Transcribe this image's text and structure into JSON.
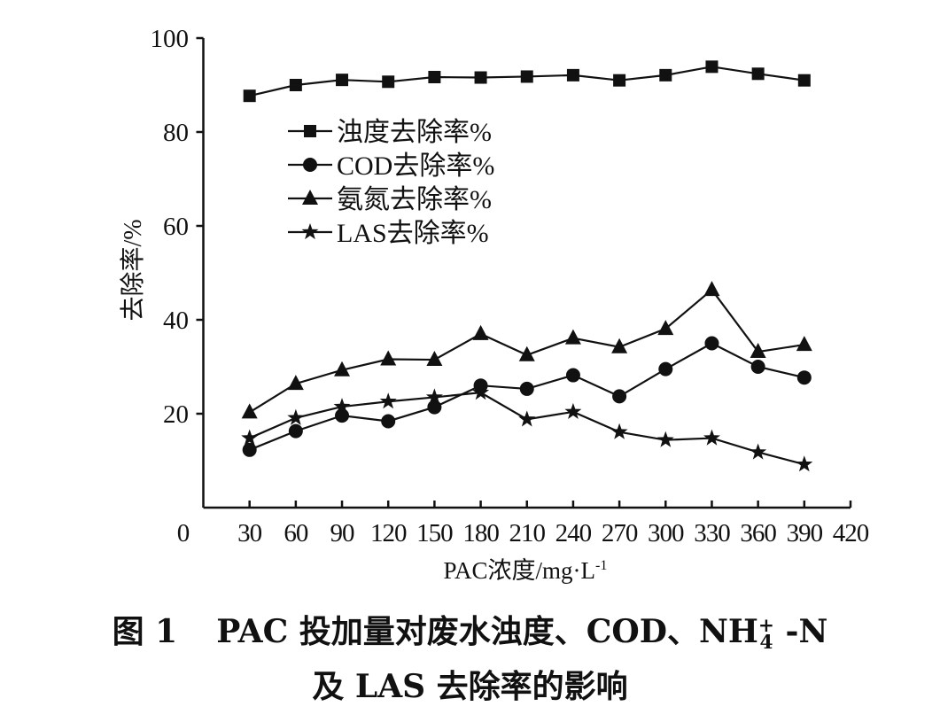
{
  "chart_data": {
    "type": "line",
    "title": "",
    "xlabel": "PAC浓度/mg·L",
    "xlabel_sup": "-1",
    "ylabel": "去除率/%",
    "xlim": [
      0,
      420
    ],
    "ylim": [
      0,
      100
    ],
    "xticks": [
      0,
      30,
      60,
      90,
      120,
      150,
      180,
      210,
      240,
      270,
      300,
      330,
      360,
      390,
      420
    ],
    "yticks": [
      20,
      40,
      60,
      80,
      100
    ],
    "grid": false,
    "legend_position": "top-left",
    "x": [
      30,
      60,
      90,
      120,
      150,
      180,
      210,
      240,
      270,
      300,
      330,
      360,
      390
    ],
    "series": [
      {
        "name": "浊度去除率%",
        "marker": "square",
        "values": [
          87.7,
          90.0,
          91.1,
          90.7,
          91.7,
          91.6,
          91.8,
          92.1,
          91.0,
          92.1,
          93.9,
          92.4,
          91.0
        ]
      },
      {
        "name": "COD去除率%",
        "marker": "circle",
        "values": [
          12.3,
          16.3,
          19.6,
          18.4,
          21.4,
          26.0,
          25.3,
          28.2,
          23.7,
          29.5,
          35.0,
          30.0,
          27.7
        ]
      },
      {
        "name": "氨氮去除率%",
        "marker": "triangle",
        "values": [
          20.3,
          26.4,
          29.3,
          31.6,
          31.5,
          37.0,
          32.5,
          36.1,
          34.2,
          38.1,
          46.4,
          33.2,
          34.7
        ]
      },
      {
        "name": "LAS去除率%",
        "marker": "star",
        "values": [
          14.8,
          19.1,
          21.5,
          22.6,
          23.5,
          24.5,
          18.8,
          20.4,
          16.1,
          14.4,
          14.8,
          11.8,
          9.2
        ]
      }
    ],
    "color": "#111111"
  },
  "caption": {
    "label": "图 1",
    "line1_text": "PAC 投加量对废水浊度、COD、NH",
    "line1_sub": "4",
    "line1_sup": "+",
    "line1_tail": " -N",
    "line2": "及 LAS 去除率的影响"
  }
}
